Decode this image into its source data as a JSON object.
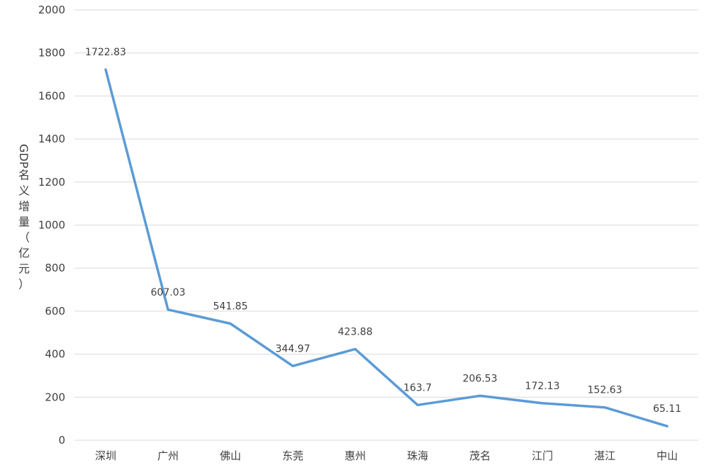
{
  "chart_data": {
    "type": "line",
    "title": "",
    "xlabel": "",
    "ylabel": "GDP名义增量（亿元）",
    "categories": [
      "深圳",
      "广州",
      "佛山",
      "东莞",
      "惠州",
      "珠海",
      "茂名",
      "江门",
      "湛江",
      "中山"
    ],
    "series": [
      {
        "values": [
          1722.83,
          607.03,
          541.85,
          344.97,
          423.88,
          163.7,
          206.53,
          172.13,
          152.63,
          65.11
        ],
        "data_labels": [
          "1722.83",
          "607.03",
          "541.85",
          "344.97",
          "423.88",
          "163.7",
          "206.53",
          "172.13",
          "152.63",
          "65.11"
        ],
        "color": "#5b9bd5"
      }
    ],
    "ylim": [
      0,
      2000
    ],
    "yticks": [
      0,
      200,
      400,
      600,
      800,
      1000,
      1200,
      1400,
      1600,
      1800,
      2000
    ],
    "grid": true,
    "legend": "none",
    "colors": {
      "line": "#5b9bd5",
      "grid": "#d9d9d9",
      "text": "#404040"
    }
  }
}
